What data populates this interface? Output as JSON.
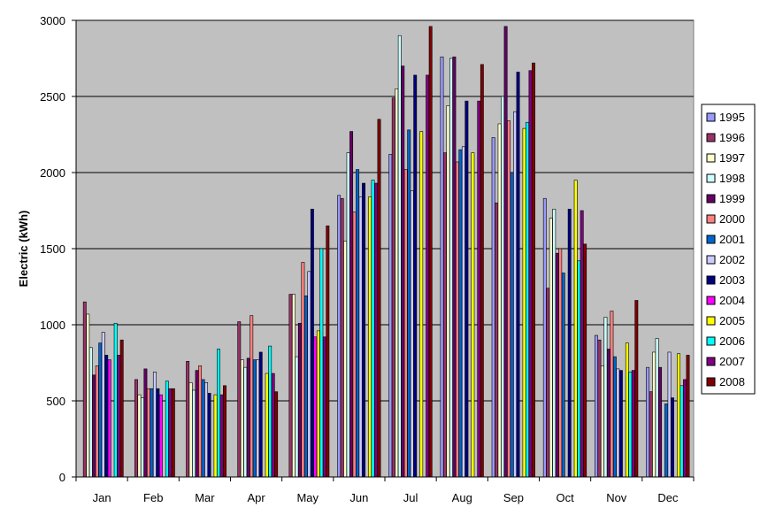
{
  "chart_data": {
    "type": "bar",
    "ylabel": "Electric (kWh)",
    "xlabel": "",
    "title": "",
    "ylim": [
      0,
      3000
    ],
    "yticks": [
      0,
      500,
      1000,
      1500,
      2000,
      2500,
      3000
    ],
    "grid": "horizontal",
    "legend_position": "right",
    "plot_background": "#c0c0c0",
    "categories": [
      "Jan",
      "Feb",
      "Mar",
      "Apr",
      "May",
      "Jun",
      "Jul",
      "Aug",
      "Sep",
      "Oct",
      "Nov",
      "Dec"
    ],
    "series": [
      {
        "name": "1995",
        "color": "#9999ff",
        "values": [
          null,
          null,
          null,
          null,
          null,
          1850,
          2120,
          2760,
          2230,
          1830,
          930,
          720
        ]
      },
      {
        "name": "1996",
        "color": "#993366",
        "values": [
          1150,
          640,
          760,
          1020,
          1200,
          1830,
          2490,
          2130,
          1800,
          1240,
          900,
          560
        ]
      },
      {
        "name": "1997",
        "color": "#ffffcc",
        "values": [
          1070,
          540,
          620,
          770,
          1200,
          1550,
          2550,
          2440,
          2320,
          1700,
          730,
          820
        ]
      },
      {
        "name": "1998",
        "color": "#ccffff",
        "values": [
          850,
          520,
          570,
          720,
          790,
          2130,
          2900,
          2750,
          2500,
          1760,
          1050,
          910
        ]
      },
      {
        "name": "1999",
        "color": "#660066",
        "values": [
          670,
          710,
          700,
          780,
          1010,
          2270,
          2700,
          2760,
          2960,
          1470,
          840,
          720
        ]
      },
      {
        "name": "2000",
        "color": "#ff8080",
        "values": [
          730,
          580,
          730,
          1060,
          1410,
          1740,
          2020,
          2070,
          2340,
          1500,
          1090,
          null
        ]
      },
      {
        "name": "2001",
        "color": "#0066cc",
        "values": [
          880,
          580,
          640,
          770,
          1190,
          2020,
          2280,
          2150,
          2000,
          1340,
          790,
          480
        ]
      },
      {
        "name": "2002",
        "color": "#ccccff",
        "values": [
          950,
          690,
          620,
          770,
          1350,
          1840,
          1880,
          2170,
          2400,
          null,
          710,
          820
        ]
      },
      {
        "name": "2003",
        "color": "#000080",
        "values": [
          800,
          580,
          550,
          820,
          1760,
          1930,
          2640,
          2470,
          2660,
          1760,
          700,
          520
        ]
      },
      {
        "name": "2004",
        "color": "#ff00ff",
        "values": [
          770,
          540,
          null,
          null,
          920,
          null,
          null,
          null,
          null,
          null,
          null,
          null
        ]
      },
      {
        "name": "2005",
        "color": "#ffff00",
        "values": [
          null,
          null,
          540,
          680,
          960,
          1840,
          2270,
          2130,
          2290,
          1950,
          880,
          810
        ]
      },
      {
        "name": "2006",
        "color": "#00ffff",
        "values": [
          1010,
          630,
          840,
          860,
          1500,
          1950,
          null,
          null,
          2330,
          1420,
          690,
          600
        ]
      },
      {
        "name": "2007",
        "color": "#800080",
        "values": [
          800,
          580,
          540,
          680,
          920,
          1930,
          2640,
          2470,
          2670,
          1750,
          700,
          640
        ]
      },
      {
        "name": "2008",
        "color": "#800000",
        "values": [
          900,
          580,
          600,
          560,
          1650,
          2350,
          2960,
          2710,
          2720,
          1530,
          1160,
          800
        ]
      }
    ]
  }
}
